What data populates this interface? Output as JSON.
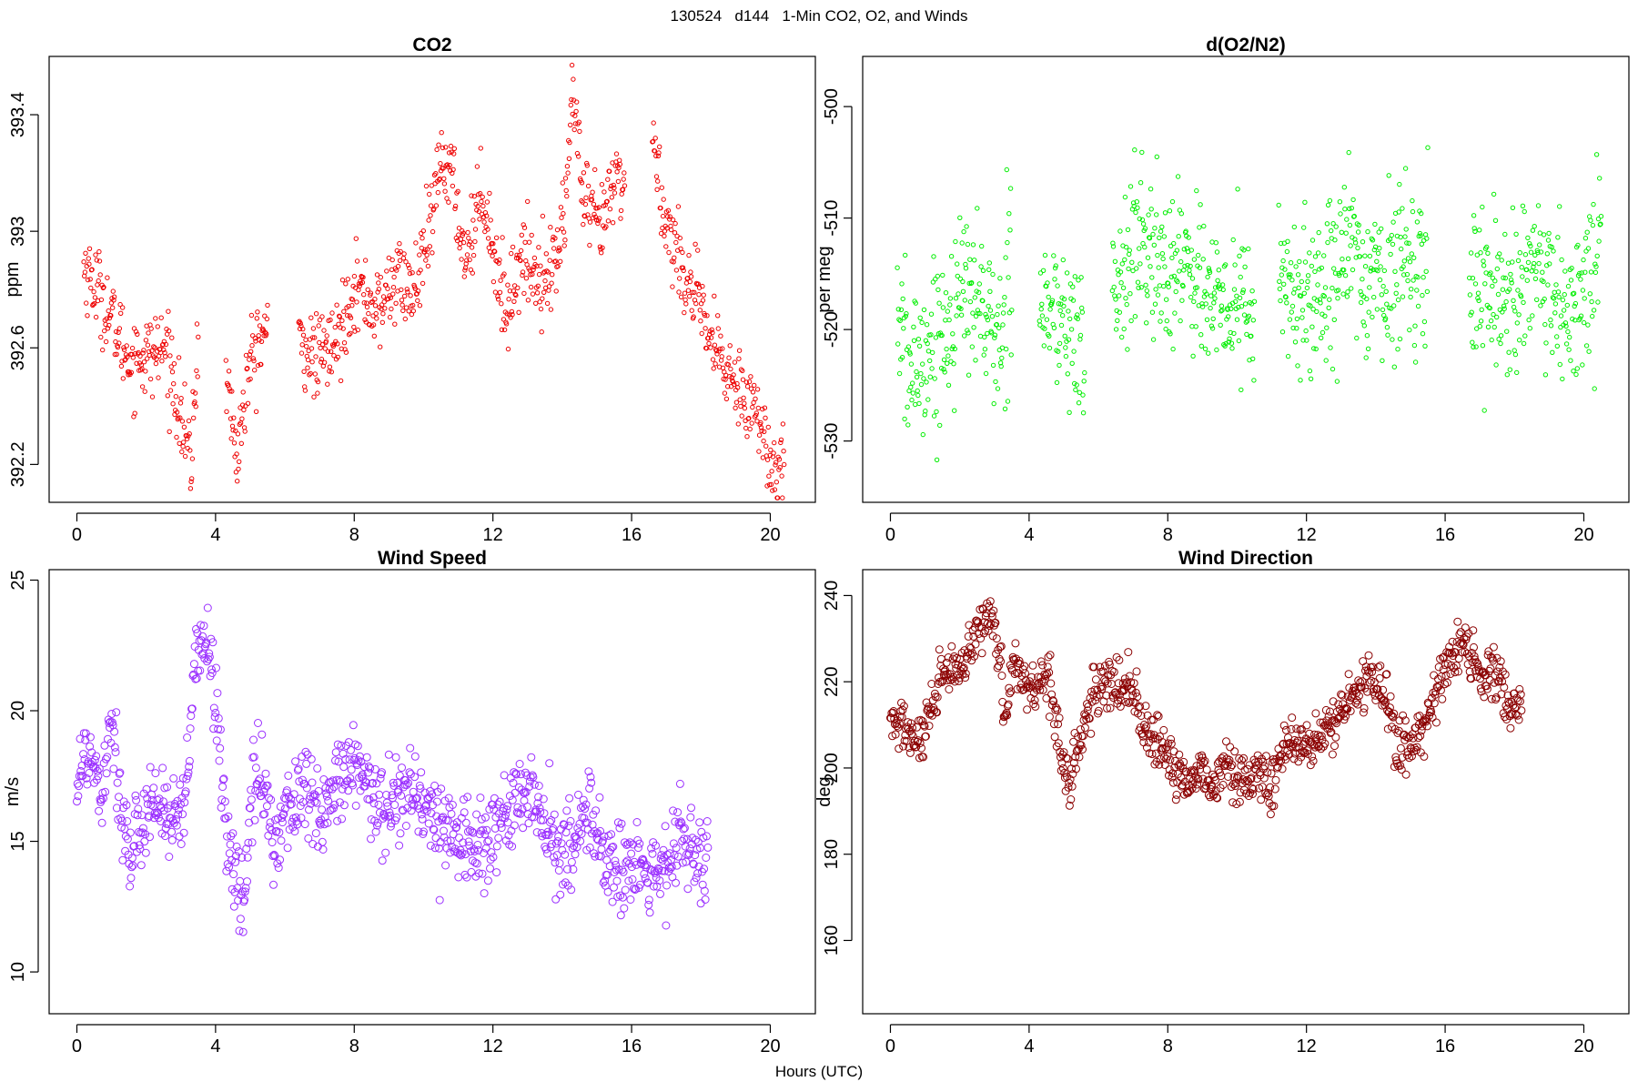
{
  "title": "130524   d144   1-Min CO2, O2, and Winds",
  "xlabel": "Hours (UTC)",
  "chart_data": [
    {
      "type": "scatter",
      "title": "CO2",
      "ylabel": "ppm",
      "xlim": [
        -0.8,
        21.3
      ],
      "ylim": [
        392.07,
        393.6
      ],
      "xticks": [
        0,
        4,
        8,
        12,
        16,
        20
      ],
      "yticks": [
        392.2,
        392.6,
        393.0,
        393.4
      ],
      "color": "#ee0000",
      "segments": [
        [
          0.2,
          392.88
        ],
        [
          0.7,
          392.78
        ],
        [
          1.5,
          392.56
        ],
        [
          2.2,
          392.58
        ],
        [
          2.6,
          392.6
        ],
        [
          3.1,
          392.3
        ],
        [
          3.3,
          392.2
        ],
        [
          3.5,
          392.65
        ],
        null,
        [
          4.3,
          392.53
        ],
        [
          4.6,
          392.22
        ],
        [
          5.0,
          392.55
        ],
        [
          5.5,
          392.68
        ],
        null,
        [
          6.4,
          392.62
        ],
        [
          6.9,
          392.56
        ],
        [
          7.5,
          392.62
        ],
        [
          8.0,
          392.82
        ],
        [
          8.7,
          392.72
        ],
        [
          9.2,
          392.85
        ],
        [
          9.7,
          392.78
        ],
        [
          10.2,
          393.0
        ],
        [
          10.5,
          393.25
        ],
        [
          10.8,
          393.2
        ],
        [
          11.2,
          392.9
        ],
        [
          11.7,
          393.15
        ],
        [
          12.1,
          392.88
        ],
        [
          12.4,
          392.72
        ],
        [
          12.8,
          392.92
        ],
        [
          13.3,
          392.85
        ],
        [
          13.8,
          392.88
        ],
        [
          14.1,
          393.1
        ],
        [
          14.3,
          393.5
        ],
        [
          14.6,
          393.1
        ],
        [
          15.1,
          393.0
        ],
        [
          15.6,
          393.2
        ],
        [
          15.8,
          393.15
        ],
        null,
        [
          16.6,
          393.32
        ],
        [
          17.0,
          393.02
        ],
        [
          17.4,
          392.9
        ],
        [
          17.8,
          392.78
        ],
        [
          18.2,
          392.65
        ],
        [
          18.7,
          392.52
        ],
        [
          19.3,
          392.45
        ],
        [
          19.6,
          392.38
        ],
        [
          20.0,
          392.2
        ],
        [
          20.4,
          392.25
        ]
      ]
    },
    {
      "type": "scatter",
      "title": "d(O2/N2)",
      "ylabel": "per meg",
      "xlim": [
        -0.8,
        21.3
      ],
      "ylim": [
        -535.5,
        -495.5
      ],
      "xticks": [
        0,
        4,
        8,
        12,
        16,
        20
      ],
      "yticks": [
        -500,
        -510,
        -520,
        -530
      ],
      "color": "#00ee00",
      "segments": [
        [
          0.2,
          -518
        ],
        [
          0.5,
          -524
        ],
        [
          1.0,
          -522
        ],
        [
          1.6,
          -520
        ],
        [
          2.0,
          -517
        ],
        [
          2.4,
          -516
        ],
        [
          2.8,
          -519
        ],
        [
          3.2,
          -522
        ],
        [
          3.5,
          -510
        ],
        null,
        [
          4.3,
          -517
        ],
        [
          4.8,
          -519
        ],
        [
          5.2,
          -520
        ],
        [
          5.6,
          -522
        ],
        null,
        [
          6.4,
          -518
        ],
        [
          6.8,
          -514
        ],
        [
          7.2,
          -512
        ],
        [
          7.6,
          -514
        ],
        [
          8.0,
          -515
        ],
        [
          8.5,
          -513
        ],
        [
          9.0,
          -516
        ],
        [
          9.5,
          -519
        ],
        [
          10.0,
          -517
        ],
        [
          10.5,
          -519
        ],
        null,
        [
          11.2,
          -516
        ],
        [
          11.7,
          -517
        ],
        [
          12.2,
          -518
        ],
        [
          12.7,
          -514
        ],
        [
          13.2,
          -513
        ],
        [
          13.7,
          -515
        ],
        [
          14.2,
          -516
        ],
        [
          14.7,
          -514
        ],
        [
          15.2,
          -514
        ],
        [
          15.5,
          -515
        ],
        null,
        [
          16.7,
          -515
        ],
        [
          17.2,
          -516
        ],
        [
          17.7,
          -517
        ],
        [
          18.2,
          -516
        ],
        [
          18.7,
          -516
        ],
        [
          19.2,
          -518
        ],
        [
          19.7,
          -519
        ],
        [
          20.2,
          -515
        ],
        [
          20.5,
          -512
        ]
      ]
    },
    {
      "type": "scatter",
      "title": "Wind Speed",
      "ylabel": "m/s",
      "xlim": [
        -0.8,
        21.3
      ],
      "ylim": [
        8.4,
        25.4
      ],
      "xticks": [
        0,
        4,
        8,
        12,
        16,
        20
      ],
      "yticks": [
        10,
        15,
        20,
        25
      ],
      "color": "#9b30ff",
      "segments": [
        [
          0.0,
          17.5
        ],
        [
          0.4,
          18.5
        ],
        [
          0.7,
          17.0
        ],
        [
          1.0,
          20.0
        ],
        [
          1.3,
          16.0
        ],
        [
          1.6,
          14.0
        ],
        [
          2.0,
          16.5
        ],
        [
          2.4,
          16.5
        ],
        [
          2.8,
          15.5
        ],
        [
          3.1,
          16.0
        ],
        [
          3.4,
          21.5
        ],
        [
          3.8,
          23.0
        ],
        [
          4.2,
          17.0
        ],
        [
          4.5,
          14.0
        ],
        [
          4.8,
          12.5
        ],
        [
          5.1,
          17.5
        ],
        [
          5.4,
          17.0
        ],
        [
          5.7,
          15.0
        ],
        [
          6.0,
          16.0
        ],
        [
          6.5,
          17.0
        ],
        [
          7.0,
          16.0
        ],
        [
          7.5,
          17.0
        ],
        [
          8.0,
          18.0
        ],
        [
          8.5,
          16.5
        ],
        [
          9.0,
          16.5
        ],
        [
          9.5,
          17.0
        ],
        [
          10.0,
          16.5
        ],
        [
          10.5,
          15.5
        ],
        [
          11.0,
          15.5
        ],
        [
          11.5,
          14.5
        ],
        [
          12.0,
          15.5
        ],
        [
          12.5,
          16.0
        ],
        [
          13.0,
          17.0
        ],
        [
          13.5,
          15.5
        ],
        [
          14.0,
          14.5
        ],
        [
          14.5,
          15.5
        ],
        [
          14.9,
          16.0
        ],
        [
          15.3,
          14.0
        ],
        [
          15.7,
          14.0
        ],
        [
          16.2,
          14.0
        ],
        [
          16.7,
          13.5
        ],
        [
          17.0,
          14.0
        ],
        [
          17.4,
          15.5
        ],
        [
          17.8,
          14.0
        ],
        [
          18.2,
          14.5
        ]
      ]
    },
    {
      "type": "scatter",
      "title": "Wind Direction",
      "ylabel": "deg",
      "xlim": [
        -0.8,
        21.3
      ],
      "ylim": [
        143,
        246
      ],
      "xticks": [
        0,
        4,
        8,
        12,
        16,
        20
      ],
      "yticks": [
        160,
        180,
        200,
        220,
        240
      ],
      "color": "#8b0000",
      "segments": [
        [
          0.0,
          210
        ],
        [
          0.4,
          210
        ],
        [
          0.8,
          205
        ],
        [
          1.2,
          212
        ],
        [
          1.5,
          222
        ],
        [
          2.0,
          222
        ],
        [
          2.4,
          228
        ],
        [
          2.7,
          235
        ],
        [
          3.0,
          235
        ],
        [
          3.3,
          213
        ],
        [
          3.6,
          225
        ],
        [
          4.0,
          218
        ],
        [
          4.3,
          220
        ],
        [
          4.6,
          222
        ],
        [
          4.9,
          205
        ],
        [
          5.1,
          195
        ],
        [
          5.4,
          205
        ],
        [
          5.8,
          215
        ],
        [
          6.2,
          220
        ],
        [
          6.6,
          218
        ],
        [
          7.0,
          220
        ],
        [
          7.3,
          208
        ],
        [
          7.7,
          205
        ],
        [
          8.0,
          202
        ],
        [
          8.5,
          197
        ],
        [
          9.0,
          200
        ],
        [
          9.3,
          195
        ],
        [
          9.7,
          202
        ],
        [
          10.0,
          196
        ],
        [
          10.5,
          200
        ],
        [
          11.0,
          195
        ],
        [
          11.3,
          205
        ],
        [
          11.7,
          205
        ],
        [
          12.2,
          205
        ],
        [
          12.7,
          210
        ],
        [
          13.2,
          215
        ],
        [
          13.7,
          220
        ],
        [
          14.2,
          220
        ],
        [
          14.6,
          205
        ],
        [
          15.0,
          205
        ],
        [
          15.4,
          210
        ],
        [
          15.8,
          220
        ],
        [
          16.2,
          225
        ],
        [
          16.6,
          230
        ],
        [
          17.0,
          220
        ],
        [
          17.4,
          222
        ],
        [
          17.8,
          215
        ],
        [
          18.2,
          212
        ]
      ]
    }
  ]
}
